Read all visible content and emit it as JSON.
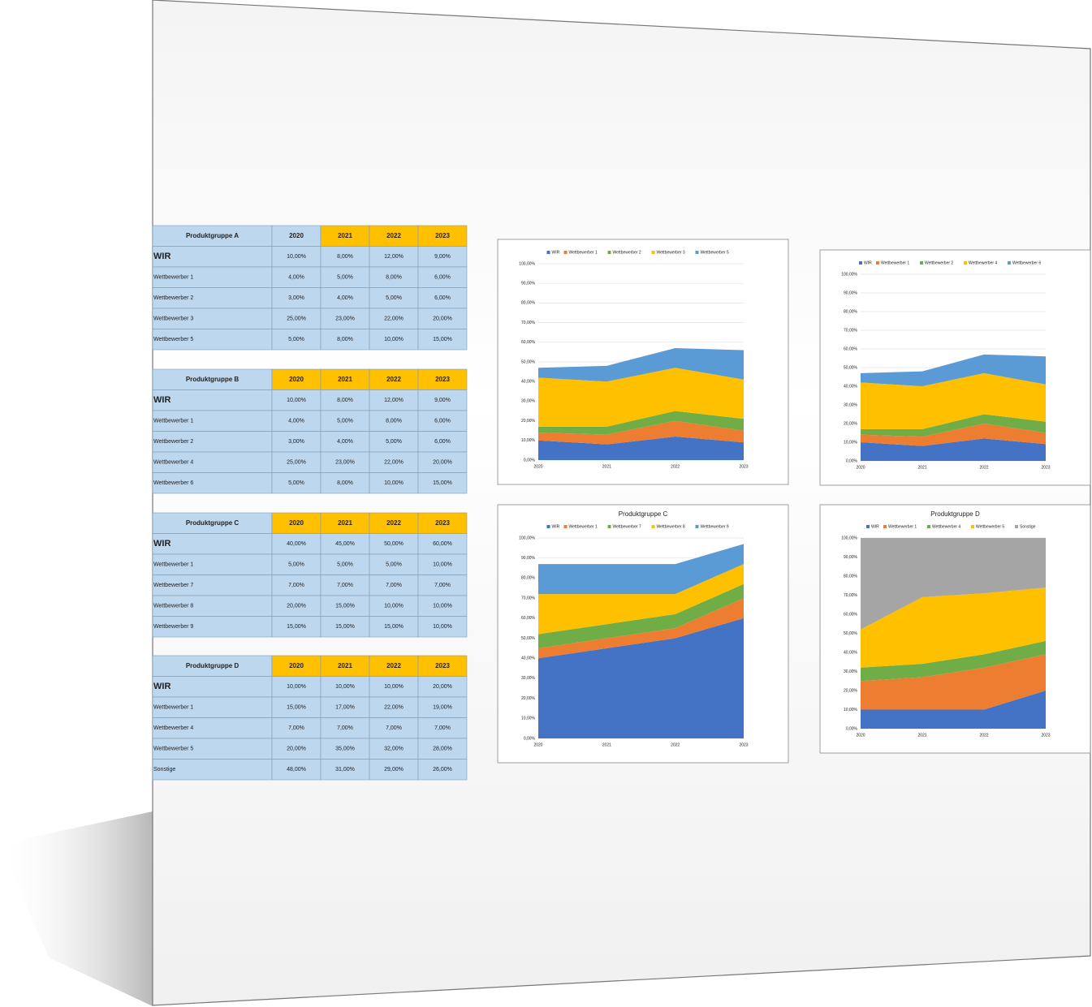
{
  "tables": [
    {
      "title": "Produktgruppe A",
      "years": [
        "2020",
        "2021",
        "2022",
        "2023"
      ],
      "year_colors": [
        "#bdd7ee",
        "#ffc000",
        "#ffc000",
        "#ffc000"
      ],
      "rows": [
        {
          "label": "WIR",
          "values": [
            "10,00%",
            "8,00%",
            "12,00%",
            "9,00%"
          ]
        },
        {
          "label": "Wettbewerber 1",
          "values": [
            "4,00%",
            "5,00%",
            "8,00%",
            "6,00%"
          ]
        },
        {
          "label": "Wettbewerber 2",
          "values": [
            "3,00%",
            "4,00%",
            "5,00%",
            "6,00%"
          ]
        },
        {
          "label": "Wettbewerber 3",
          "values": [
            "25,00%",
            "23,00%",
            "22,00%",
            "20,00%"
          ]
        },
        {
          "label": "Wettbewerber 5",
          "values": [
            "5,00%",
            "8,00%",
            "10,00%",
            "15,00%"
          ]
        }
      ]
    },
    {
      "title": "Produktgruppe B",
      "years": [
        "2020",
        "2021",
        "2022",
        "2023"
      ],
      "year_colors": [
        "#ffc000",
        "#ffc000",
        "#ffc000",
        "#ffc000"
      ],
      "rows": [
        {
          "label": "WIR",
          "values": [
            "10,00%",
            "8,00%",
            "12,00%",
            "9,00%"
          ]
        },
        {
          "label": "Wettbewerber 1",
          "values": [
            "4,00%",
            "5,00%",
            "8,00%",
            "6,00%"
          ]
        },
        {
          "label": "Wettbewerber 2",
          "values": [
            "3,00%",
            "4,00%",
            "5,00%",
            "6,00%"
          ]
        },
        {
          "label": "Wettbewerber 4",
          "values": [
            "25,00%",
            "23,00%",
            "22,00%",
            "20,00%"
          ]
        },
        {
          "label": "Wettbewerber 6",
          "values": [
            "5,00%",
            "8,00%",
            "10,00%",
            "15,00%"
          ]
        }
      ]
    },
    {
      "title": "Produktgruppe C",
      "years": [
        "2020",
        "2021",
        "2022",
        "2023"
      ],
      "year_colors": [
        "#ffc000",
        "#ffc000",
        "#ffc000",
        "#ffc000"
      ],
      "rows": [
        {
          "label": "WIR",
          "values": [
            "40,00%",
            "45,00%",
            "50,00%",
            "60,00%"
          ]
        },
        {
          "label": "Wettbewerber 1",
          "values": [
            "5,00%",
            "5,00%",
            "5,00%",
            "10,00%"
          ]
        },
        {
          "label": "Wettbewerber 7",
          "values": [
            "7,00%",
            "7,00%",
            "7,00%",
            "7,00%"
          ]
        },
        {
          "label": "Wettbewerber 8",
          "values": [
            "20,00%",
            "15,00%",
            "10,00%",
            "10,00%"
          ]
        },
        {
          "label": "Wettbewerber 9",
          "values": [
            "15,00%",
            "15,00%",
            "15,00%",
            "10,00%"
          ]
        }
      ]
    },
    {
      "title": "Produktgruppe D",
      "years": [
        "2020",
        "2021",
        "2022",
        "2023"
      ],
      "year_colors": [
        "#ffc000",
        "#ffc000",
        "#ffc000",
        "#ffc000"
      ],
      "rows": [
        {
          "label": "WIR",
          "values": [
            "10,00%",
            "10,00%",
            "10,00%",
            "20,00%"
          ]
        },
        {
          "label": "Wettbewerber 1",
          "values": [
            "15,00%",
            "17,00%",
            "22,00%",
            "19,00%"
          ]
        },
        {
          "label": "Wettbewerber 4",
          "values": [
            "7,00%",
            "7,00%",
            "7,00%",
            "7,00%"
          ]
        },
        {
          "label": "Wettbewerber 5",
          "values": [
            "20,00%",
            "35,00%",
            "32,00%",
            "28,00%"
          ]
        },
        {
          "label": "Sonstige",
          "values": [
            "48,00%",
            "31,00%",
            "29,00%",
            "26,00%"
          ]
        }
      ]
    }
  ],
  "chart_data": [
    {
      "type": "area",
      "stacked": true,
      "categories": [
        "2020",
        "2021",
        "2022",
        "2023"
      ],
      "ylim": [
        0,
        100
      ],
      "grid": true,
      "yticks": [
        {
          "value": 0,
          "label": "0,00%"
        },
        {
          "value": 10,
          "label": "10,00%"
        },
        {
          "value": 20,
          "label": "20,00%"
        },
        {
          "value": 30,
          "label": "30,00%"
        },
        {
          "value": 40,
          "label": "40,00%"
        },
        {
          "value": 50,
          "label": "50,00%"
        },
        {
          "value": 60,
          "label": "60,00%"
        },
        {
          "value": 70,
          "label": "70,00%"
        },
        {
          "value": 80,
          "label": "80,00%"
        },
        {
          "value": 90,
          "label": "90,00%"
        },
        {
          "value": 100,
          "label": "100,00%"
        }
      ],
      "series": [
        {
          "name": "WIR",
          "color": "#4472c4",
          "values": [
            10,
            8,
            12,
            9
          ]
        },
        {
          "name": "Wettbewerber 1",
          "color": "#ed7d31",
          "values": [
            4,
            5,
            8,
            6
          ]
        },
        {
          "name": "Wettbewerber 2",
          "color": "#70ad47",
          "values": [
            3,
            4,
            5,
            6
          ]
        },
        {
          "name": "Wettbewerber 3",
          "color": "#ffc000",
          "values": [
            25,
            23,
            22,
            20
          ]
        },
        {
          "name": "Wettbewerber 5",
          "color": "#5b9bd5",
          "values": [
            5,
            8,
            10,
            15
          ]
        }
      ]
    },
    {
      "type": "area",
      "stacked": true,
      "categories": [
        "2020",
        "2021",
        "2022",
        "2023"
      ],
      "ylim": [
        0,
        100
      ],
      "grid": true,
      "yticks": [
        {
          "value": 0,
          "label": "0,00%"
        },
        {
          "value": 10,
          "label": "10,00%"
        },
        {
          "value": 20,
          "label": "20,00%"
        },
        {
          "value": 30,
          "label": "30,00%"
        },
        {
          "value": 40,
          "label": "40,00%"
        },
        {
          "value": 50,
          "label": "50,00%"
        },
        {
          "value": 60,
          "label": "60,00%"
        },
        {
          "value": 70,
          "label": "70,00%"
        },
        {
          "value": 80,
          "label": "80,00%"
        },
        {
          "value": 90,
          "label": "90,00%"
        },
        {
          "value": 100,
          "label": "100,00%"
        }
      ],
      "series": [
        {
          "name": "WIR",
          "color": "#4472c4",
          "values": [
            10,
            8,
            12,
            9
          ]
        },
        {
          "name": "Wettbewerber 1",
          "color": "#ed7d31",
          "values": [
            4,
            5,
            8,
            6
          ]
        },
        {
          "name": "Wettbewerber 2",
          "color": "#70ad47",
          "values": [
            3,
            4,
            5,
            6
          ]
        },
        {
          "name": "Wettbewerber 4",
          "color": "#ffc000",
          "values": [
            25,
            23,
            22,
            20
          ]
        },
        {
          "name": "Wettbewerber 6",
          "color": "#5b9bd5",
          "values": [
            5,
            8,
            10,
            15
          ]
        }
      ]
    },
    {
      "type": "area",
      "stacked": true,
      "title": "Produktgruppe C",
      "categories": [
        "2020",
        "2021",
        "2022",
        "2023"
      ],
      "ylim": [
        0,
        100
      ],
      "grid": true,
      "yticks": [
        {
          "value": 0,
          "label": "0,00%"
        },
        {
          "value": 10,
          "label": "10,00%"
        },
        {
          "value": 20,
          "label": "20,00%"
        },
        {
          "value": 30,
          "label": "30,00%"
        },
        {
          "value": 40,
          "label": "40,00%"
        },
        {
          "value": 50,
          "label": "50,00%"
        },
        {
          "value": 60,
          "label": "60,00%"
        },
        {
          "value": 70,
          "label": "70,00%"
        },
        {
          "value": 80,
          "label": "80,00%"
        },
        {
          "value": 90,
          "label": "90,00%"
        },
        {
          "value": 100,
          "label": "100,00%"
        }
      ],
      "series": [
        {
          "name": "WIR",
          "color": "#4472c4",
          "values": [
            40,
            45,
            50,
            60
          ]
        },
        {
          "name": "Wettbewerber 1",
          "color": "#ed7d31",
          "values": [
            5,
            5,
            5,
            10
          ]
        },
        {
          "name": "Wettbewerber 7",
          "color": "#70ad47",
          "values": [
            7,
            7,
            7,
            7
          ]
        },
        {
          "name": "Wettbewerber 8",
          "color": "#ffc000",
          "values": [
            20,
            15,
            10,
            10
          ]
        },
        {
          "name": "Wettbewerber 9",
          "color": "#5b9bd5",
          "values": [
            15,
            15,
            15,
            10
          ]
        }
      ]
    },
    {
      "type": "area",
      "stacked": true,
      "title": "Produktgruppe D",
      "categories": [
        "2020",
        "2021",
        "2022",
        "2023"
      ],
      "ylim": [
        0,
        100
      ],
      "grid": true,
      "yticks": [
        {
          "value": 0,
          "label": "0,00%"
        },
        {
          "value": 10,
          "label": "10,00%"
        },
        {
          "value": 20,
          "label": "20,00%"
        },
        {
          "value": 30,
          "label": "30,00%"
        },
        {
          "value": 40,
          "label": "40,00%"
        },
        {
          "value": 50,
          "label": "50,00%"
        },
        {
          "value": 60,
          "label": "60,00%"
        },
        {
          "value": 70,
          "label": "70,00%"
        },
        {
          "value": 80,
          "label": "80,00%"
        },
        {
          "value": 90,
          "label": "90,00%"
        },
        {
          "value": 100,
          "label": "100,00%"
        }
      ],
      "series": [
        {
          "name": "WIR",
          "color": "#4472c4",
          "values": [
            10,
            10,
            10,
            20
          ]
        },
        {
          "name": "Wettbewerber 1",
          "color": "#ed7d31",
          "values": [
            15,
            17,
            22,
            19
          ]
        },
        {
          "name": "Wettbewerber 4",
          "color": "#70ad47",
          "values": [
            7,
            7,
            7,
            7
          ]
        },
        {
          "name": "Wettbewerber 5",
          "color": "#ffc000",
          "values": [
            20,
            35,
            32,
            28
          ]
        },
        {
          "name": "Sonstige",
          "color": "#a5a5a5",
          "values": [
            48,
            31,
            29,
            26
          ]
        }
      ]
    }
  ]
}
